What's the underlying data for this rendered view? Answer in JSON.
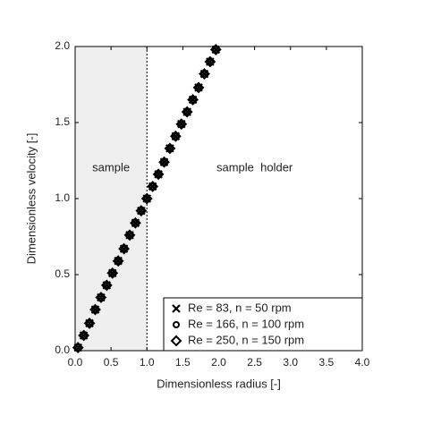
{
  "chart_data": {
    "type": "scatter",
    "x_label": "Dimensionless radius [-]",
    "y_label": "Dimensionless velocity [-]",
    "annotations": [
      "sample",
      "sample  holder"
    ],
    "shade_xrange": [
      0,
      1
    ],
    "vline": 1,
    "x": [
      0.04,
      0.12,
      0.2,
      0.28,
      0.36,
      0.44,
      0.52,
      0.6,
      0.68,
      0.76,
      0.84,
      0.92,
      1.0,
      1.08,
      1.16,
      1.24,
      1.32,
      1.4,
      1.48,
      1.56,
      1.64,
      1.72,
      1.8,
      1.88,
      1.96
    ],
    "series": [
      {
        "name": "Re = 83, n = 50 rpm",
        "marker": "x",
        "color": "#000000",
        "values": [
          0.02,
          0.1,
          0.18,
          0.27,
          0.35,
          0.43,
          0.51,
          0.59,
          0.67,
          0.76,
          0.84,
          0.92,
          1.0,
          1.08,
          1.16,
          1.24,
          1.33,
          1.41,
          1.49,
          1.57,
          1.65,
          1.73,
          1.82,
          1.9,
          1.98
        ]
      },
      {
        "name": "Re = 166, n = 100 rpm",
        "marker": "circle",
        "color": "#000000",
        "values": [
          0.02,
          0.1,
          0.18,
          0.27,
          0.35,
          0.43,
          0.51,
          0.59,
          0.67,
          0.76,
          0.84,
          0.92,
          1.0,
          1.08,
          1.16,
          1.24,
          1.33,
          1.41,
          1.49,
          1.57,
          1.65,
          1.73,
          1.82,
          1.9,
          1.98
        ]
      },
      {
        "name": "Re = 250, n = 150 rpm",
        "marker": "diamond",
        "color": "#000000",
        "values": [
          0.02,
          0.1,
          0.18,
          0.27,
          0.35,
          0.43,
          0.51,
          0.59,
          0.67,
          0.76,
          0.84,
          0.92,
          1.0,
          1.08,
          1.16,
          1.24,
          1.33,
          1.41,
          1.49,
          1.57,
          1.65,
          1.73,
          1.82,
          1.9,
          1.98
        ]
      }
    ],
    "xlim": [
      0,
      4
    ],
    "xticks": [
      {
        "value": 0,
        "label": "0.0"
      },
      0.5,
      {
        "value": 1,
        "label": "1.0"
      },
      1.5,
      {
        "value": 2,
        "label": "2.0"
      },
      2.5,
      {
        "value": 3,
        "label": "3.0"
      },
      3.5,
      {
        "value": 4,
        "label": "4.0"
      }
    ],
    "ylim": [
      0,
      2
    ],
    "yticks": [
      {
        "value": 0,
        "label": "0.0"
      },
      0.5,
      {
        "value": 1,
        "label": "1.0"
      },
      1.5,
      {
        "value": 2,
        "label": "2.0"
      }
    ],
    "legend": "lower right"
  }
}
